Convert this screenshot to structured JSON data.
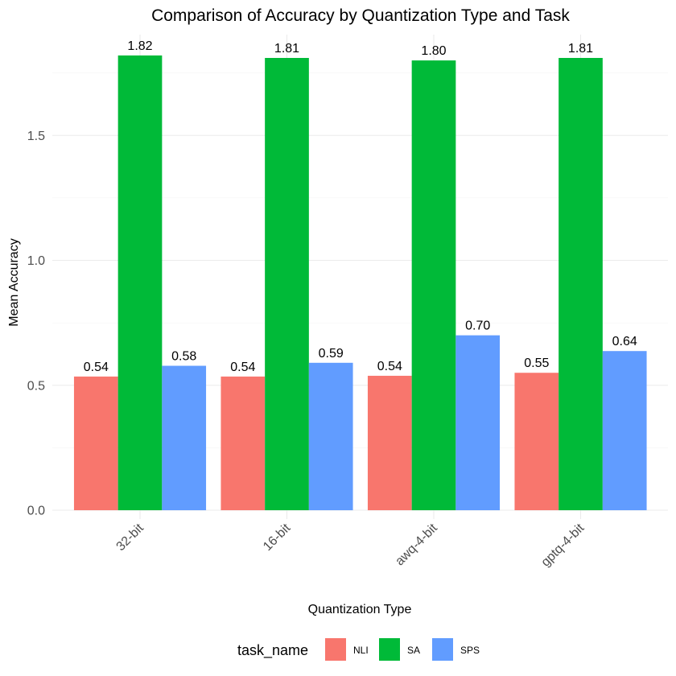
{
  "chart_data": {
    "type": "bar",
    "title": "Comparison of Accuracy by Quantization Type and Task",
    "xlabel": "Quantization Type",
    "ylabel": "Mean Accuracy",
    "categories": [
      "32-bit",
      "16-bit",
      "awq-4-bit",
      "gptq-4-bit"
    ],
    "series": [
      {
        "name": "NLI",
        "color": "#F8766D",
        "values": [
          0.535,
          0.535,
          0.538,
          0.55
        ],
        "labels": [
          "0.54",
          "0.54",
          "0.54",
          "0.55"
        ]
      },
      {
        "name": "SA",
        "color": "#00BA38",
        "values": [
          1.82,
          1.81,
          1.8,
          1.81
        ],
        "labels": [
          "1.82",
          "1.81",
          "1.80",
          "1.81"
        ]
      },
      {
        "name": "SPS",
        "color": "#619CFF",
        "values": [
          0.578,
          0.59,
          0.7,
          0.637
        ],
        "labels": [
          "0.58",
          "0.59",
          "0.70",
          "0.64"
        ]
      }
    ],
    "ylim": [
      0,
      1.9
    ],
    "yticks": [
      0.0,
      0.5,
      1.0,
      1.5
    ],
    "ytick_labels": [
      "0.0",
      "0.5",
      "1.0",
      "1.5"
    ],
    "grid": true,
    "legend": {
      "title": "task_name",
      "position": "bottom"
    }
  }
}
